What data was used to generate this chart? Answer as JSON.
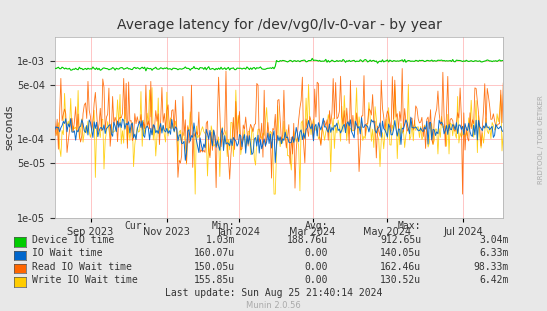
{
  "title": "Average latency for /dev/vg0/lv-0-var - by year",
  "ylabel": "seconds",
  "bg_color": "#e8e8e8",
  "plot_bg_color": "#ffffff",
  "grid_color": "#ff9999",
  "title_color": "#333333",
  "watermark": "RRDTOOL / TOBI OETIKER",
  "munin_version": "Munin 2.0.56",
  "ymin": 1e-05,
  "ymax": 0.002,
  "legend_headers": [
    "Cur:",
    "Min:",
    "Avg:",
    "Max:"
  ],
  "series": [
    {
      "label": "Device IO time",
      "color": "#00cc00",
      "cur": "1.03m",
      "min": "188.76u",
      "avg": "912.65u",
      "max": "3.04m"
    },
    {
      "label": "IO Wait time",
      "color": "#0066cc",
      "cur": "160.07u",
      "min": "0.00",
      "avg": "140.05u",
      "max": "6.33m"
    },
    {
      "label": "Read IO Wait time",
      "color": "#ff6600",
      "cur": "150.05u",
      "min": "0.00",
      "avg": "162.46u",
      "max": "98.33m"
    },
    {
      "label": "Write IO Wait time",
      "color": "#ffcc00",
      "cur": "155.85u",
      "min": "0.00",
      "avg": "130.52u",
      "max": "6.42m"
    }
  ],
  "xtick_labels": [
    "Sep 2023",
    "Nov 2023",
    "Jan 2024",
    "Mar 2024",
    "May 2024",
    "Jul 2024"
  ],
  "xtick_positions": [
    0.08,
    0.25,
    0.41,
    0.575,
    0.74,
    0.91
  ],
  "last_update": "Last update: Sun Aug 25 21:40:14 2024"
}
